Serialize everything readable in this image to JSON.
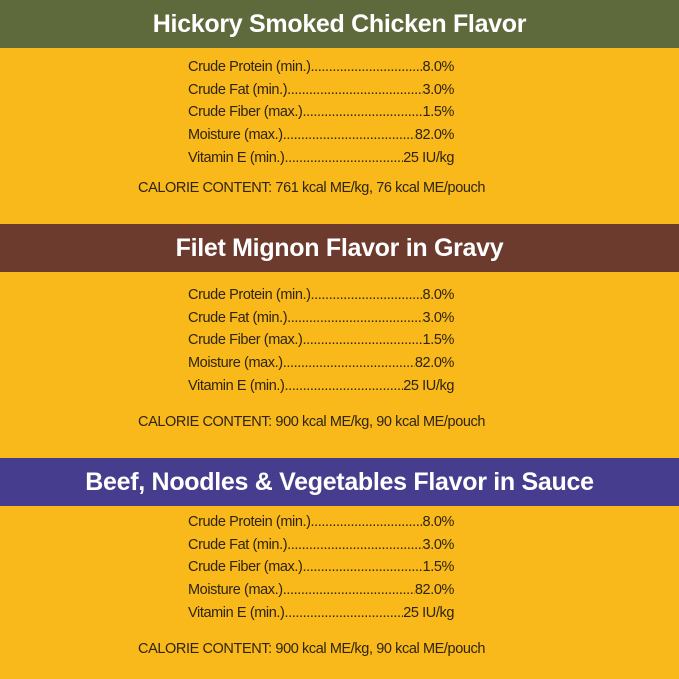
{
  "colors": {
    "background": "#f9b91b",
    "section1": "#5f6a3c",
    "section2": "#6d3a2e",
    "section3": "#473d8e"
  },
  "sections": [
    {
      "title": "Hickory Smoked Chicken Flavor",
      "rows": [
        {
          "label": "Crude Protein (min.)",
          "value": "8.0%"
        },
        {
          "label": "Crude Fat (min.)",
          "value": "3.0%"
        },
        {
          "label": "Crude Fiber (max.)",
          "value": "1.5%"
        },
        {
          "label": "Moisture (max.)",
          "value": "82.0%"
        },
        {
          "label": "Vitamin E (min.)",
          "value": "25 IU/kg"
        }
      ],
      "calorie": "CALORIE CONTENT: 761 kcal ME/kg, 76 kcal ME/pouch"
    },
    {
      "title": "Filet Mignon Flavor in Gravy",
      "rows": [
        {
          "label": "Crude Protein (min.)",
          "value": "8.0%"
        },
        {
          "label": "Crude Fat (min.)",
          "value": "3.0%"
        },
        {
          "label": "Crude Fiber (max.)",
          "value": "1.5%"
        },
        {
          "label": "Moisture (max.)",
          "value": "82.0%"
        },
        {
          "label": "Vitamin E (min.)",
          "value": "25 IU/kg"
        }
      ],
      "calorie": "CALORIE CONTENT: 900 kcal ME/kg, 90 kcal ME/pouch"
    },
    {
      "title": "Beef, Noodles & Vegetables Flavor in Sauce",
      "rows": [
        {
          "label": "Crude Protein (min.)",
          "value": "8.0%"
        },
        {
          "label": "Crude Fat (min.)",
          "value": "3.0%"
        },
        {
          "label": "Crude Fiber (max.)",
          "value": "1.5%"
        },
        {
          "label": "Moisture (max.)",
          "value": "82.0%"
        },
        {
          "label": "Vitamin E (min.)",
          "value": "25 IU/kg"
        }
      ],
      "calorie": "CALORIE CONTENT: 900 kcal ME/kg, 90 kcal ME/pouch"
    }
  ]
}
